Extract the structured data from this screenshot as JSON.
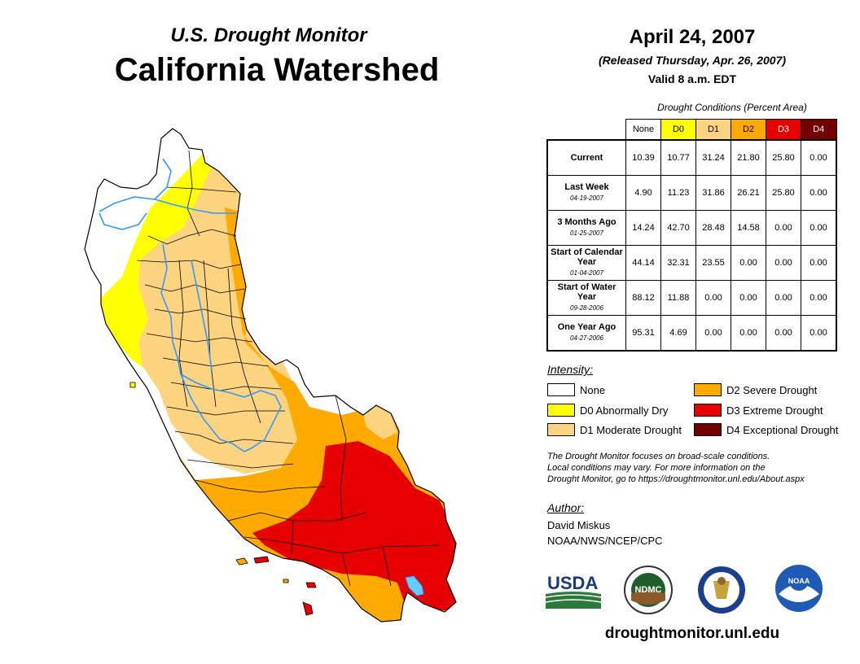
{
  "header": {
    "subtitle": "U.S. Drought Monitor",
    "title": "California Watershed",
    "date": "April 24, 2007",
    "released": "(Released Thursday, Apr. 26, 2007)",
    "valid": "Valid 8 a.m. EDT"
  },
  "table": {
    "caption": "Drought Conditions (Percent Area)",
    "columns": [
      {
        "label": "None",
        "color": "#ffffff",
        "text_color": "#000000"
      },
      {
        "label": "D0",
        "color": "#ffff00",
        "text_color": "#000000"
      },
      {
        "label": "D1",
        "color": "#fcd37f",
        "text_color": "#000000"
      },
      {
        "label": "D2",
        "color": "#ffaa00",
        "text_color": "#000000"
      },
      {
        "label": "D3",
        "color": "#e60000",
        "text_color": "#ffffff"
      },
      {
        "label": "D4",
        "color": "#730000",
        "text_color": "#ffffff"
      }
    ],
    "rows": [
      {
        "label": "Current",
        "date": "",
        "values": [
          "10.39",
          "10.77",
          "31.24",
          "21.80",
          "25.80",
          "0.00"
        ]
      },
      {
        "label": "Last Week",
        "date": "04-19-2007",
        "values": [
          "4.90",
          "11.23",
          "31.86",
          "26.21",
          "25.80",
          "0.00"
        ]
      },
      {
        "label": "3 Months Ago",
        "date": "01-25-2007",
        "values": [
          "14.24",
          "42.70",
          "28.48",
          "14.58",
          "0.00",
          "0.00"
        ]
      },
      {
        "label": "Start of Calendar Year",
        "date": "01-04-2007",
        "values": [
          "44.14",
          "32.31",
          "23.55",
          "0.00",
          "0.00",
          "0.00"
        ]
      },
      {
        "label": "Start of Water Year",
        "date": "09-28-2006",
        "values": [
          "88.12",
          "11.88",
          "0.00",
          "0.00",
          "0.00",
          "0.00"
        ]
      },
      {
        "label": "One Year Ago",
        "date": "04-27-2006",
        "values": [
          "95.31",
          "4.69",
          "0.00",
          "0.00",
          "0.00",
          "0.00"
        ]
      }
    ]
  },
  "legend": {
    "title": "Intensity:",
    "items": [
      {
        "label": "None",
        "color": "#ffffff"
      },
      {
        "label": "D0 Abnormally Dry",
        "color": "#ffff00"
      },
      {
        "label": "D1 Moderate Drought",
        "color": "#fcd37f"
      },
      {
        "label": "D2 Severe Drought",
        "color": "#ffaa00"
      },
      {
        "label": "D3 Extreme Drought",
        "color": "#e60000"
      },
      {
        "label": "D4 Exceptional Drought",
        "color": "#730000"
      }
    ]
  },
  "note": {
    "line1": "The Drought Monitor focuses on broad-scale conditions.",
    "line2": "Local conditions may vary. For more information on the",
    "line3": "Drought Monitor, go to https://droughtmonitor.unl.edu/About.aspx"
  },
  "author": {
    "label": "Author:",
    "name": "David Miskus",
    "org": "NOAA/NWS/NCEP/CPC"
  },
  "logos": {
    "usda": "USDA",
    "ndmc": "NDMC",
    "noaa": "NOAA"
  },
  "website": "droughtmonitor.unl.edu",
  "colors": {
    "river": "#3399ff",
    "boundary": "#000000"
  }
}
